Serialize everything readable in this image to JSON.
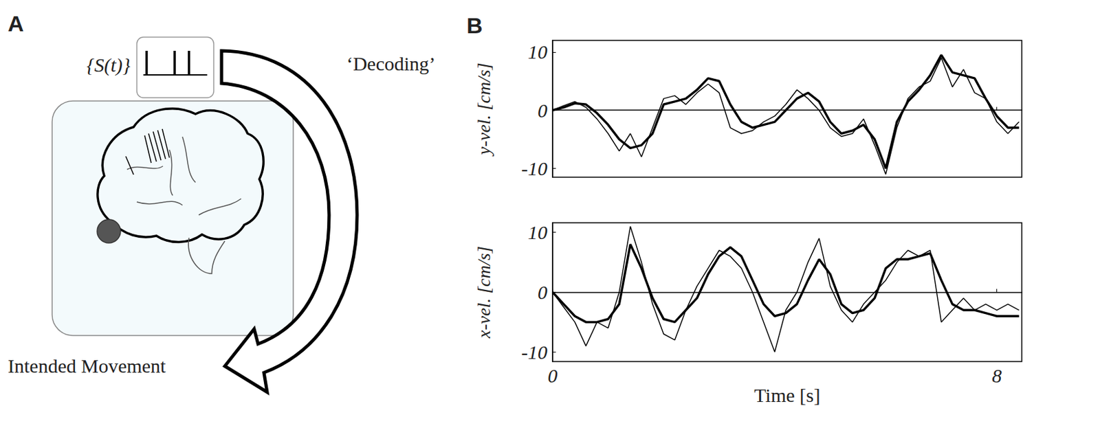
{
  "panel_labels": [
    "A",
    "B"
  ],
  "diagram": {
    "spike_label": "{S(t)}",
    "arrow_label": "‘Decoding’",
    "output_label": "Intended Movement"
  },
  "chart_data": [
    {
      "type": "line",
      "y_label": "y-vel. [cm/s]",
      "grid": false,
      "tick_labels": "y",
      "x": [
        0,
        0.2,
        0.4,
        0.6,
        0.8,
        1.0,
        1.2,
        1.4,
        1.6,
        1.8,
        2.0,
        2.2,
        2.4,
        2.6,
        2.8,
        3.0,
        3.2,
        3.4,
        3.6,
        3.8,
        4.0,
        4.2,
        4.4,
        4.6,
        4.8,
        5.0,
        5.2,
        5.4,
        5.6,
        5.8,
        6.0,
        6.2,
        6.4,
        6.6,
        6.8,
        7.0,
        7.2,
        7.4,
        7.6,
        7.8,
        8.0,
        8.2,
        8.4
      ],
      "xlim": [
        0,
        8.45
      ],
      "xticks": [
        0,
        8
      ],
      "ylim": [
        -11.5,
        12
      ],
      "yticks": [
        -10,
        0,
        10
      ],
      "series": [
        {
          "color": "#000000",
          "line_style": "thin",
          "values": [
            0,
            0.8,
            1.5,
            0.5,
            -1.5,
            -4,
            -7,
            -4,
            -8,
            -3,
            2,
            2.5,
            1,
            3,
            4.5,
            3,
            -3,
            -4,
            -3.5,
            -2,
            -1,
            1,
            3.5,
            2,
            0,
            -3,
            -4.5,
            -4,
            -1.5,
            -6,
            -11,
            -3,
            2,
            4,
            5,
            9,
            4,
            7,
            3,
            2,
            -2,
            -4,
            -2
          ]
        },
        {
          "color": "#000000",
          "line_style": "thick",
          "values": [
            0,
            0.5,
            1.2,
            1,
            -0.5,
            -2.5,
            -5,
            -6.5,
            -6,
            -4,
            1,
            1.5,
            2,
            3.5,
            5.5,
            5,
            1,
            -2,
            -3,
            -2.5,
            -2,
            0,
            2,
            3,
            1.5,
            -2,
            -4,
            -3.5,
            -2.5,
            -5,
            -10,
            -2,
            1.5,
            3.5,
            6,
            9.5,
            6.5,
            6,
            5.5,
            2,
            -1,
            -3,
            -3
          ]
        }
      ]
    },
    {
      "type": "line",
      "x_label": "Time [s]",
      "y_label": "x-vel. [cm/s]",
      "grid": false,
      "x": [
        0,
        0.2,
        0.4,
        0.6,
        0.8,
        1.0,
        1.2,
        1.4,
        1.6,
        1.8,
        2.0,
        2.2,
        2.4,
        2.6,
        2.8,
        3.0,
        3.2,
        3.4,
        3.6,
        3.8,
        4.0,
        4.2,
        4.4,
        4.6,
        4.8,
        5.0,
        5.2,
        5.4,
        5.6,
        5.8,
        6.0,
        6.2,
        6.4,
        6.6,
        6.8,
        7.0,
        7.2,
        7.4,
        7.6,
        7.8,
        8.0,
        8.2,
        8.4
      ],
      "xlim": [
        0,
        8.45
      ],
      "xticks": [
        0,
        8
      ],
      "ylim": [
        -11.6,
        11.6
      ],
      "yticks": [
        -10,
        0,
        10
      ],
      "series": [
        {
          "color": "#000000",
          "line_style": "thin",
          "values": [
            0,
            -2.5,
            -5,
            -9,
            -5,
            -6,
            0,
            11,
            5,
            -2,
            -7,
            -8,
            -3,
            1,
            4,
            7,
            6,
            4,
            0,
            -5,
            -10,
            -3,
            0,
            5,
            9,
            1,
            -3,
            -5,
            -2,
            0,
            2,
            5,
            7,
            6,
            7,
            -5,
            -3,
            -1,
            -3,
            -2,
            -3,
            -2,
            -3
          ]
        },
        {
          "color": "#000000",
          "line_style": "thick",
          "values": [
            0,
            -2,
            -4,
            -5,
            -5,
            -4.5,
            -2,
            8,
            4,
            -1,
            -4.5,
            -5,
            -3,
            -1,
            3,
            6,
            7.5,
            6,
            2,
            -2,
            -4,
            -3.5,
            -2,
            2,
            5.5,
            3,
            -2,
            -3.5,
            -3,
            -1,
            4,
            5.5,
            5.5,
            6,
            6.5,
            2,
            -2,
            -3,
            -3,
            -3.5,
            -4,
            -4,
            -4
          ]
        }
      ]
    }
  ]
}
